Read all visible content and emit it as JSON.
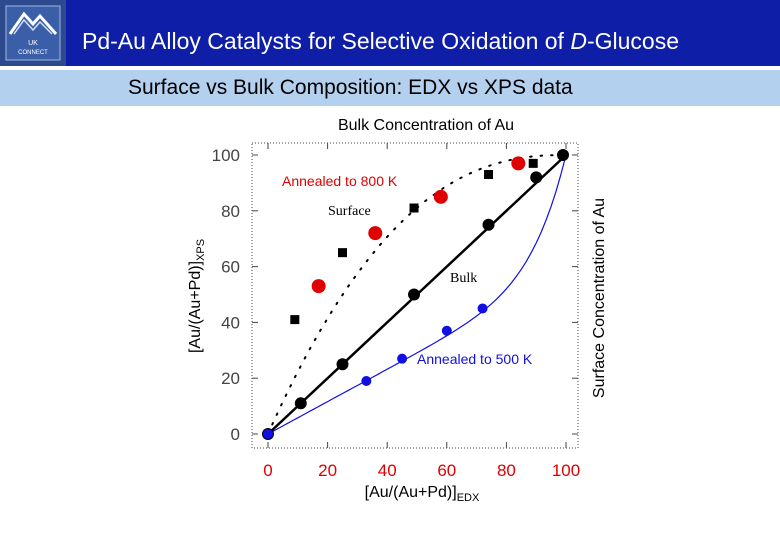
{
  "header": {
    "title_pre": "Pd-Au Alloy Catalysts for Selective Oxidation of ",
    "title_italic": "D",
    "title_post": "-Glucose",
    "logo_text_line1": "UK",
    "logo_text_line2": "CONNECT",
    "colors": {
      "header_bg": "#0f1ea6",
      "subbar_bg": "#b3d0ef"
    }
  },
  "subtitle": "Surface vs Bulk Composition: EDX vs XPS data",
  "chart_data": {
    "type": "scatter",
    "top_label": "Bulk Concentration of Au",
    "right_label": "Surface Concentration of Au",
    "xlabel": "[Au/(Au+Pd)]",
    "xlabel_sub": "EDX",
    "ylabel": "[Au/(Au+Pd)]",
    "ylabel_sub": "XPS",
    "xlim": [
      0,
      100
    ],
    "ylim": [
      0,
      100
    ],
    "xticks": [
      "0",
      "20",
      "40",
      "60",
      "80",
      "100"
    ],
    "yticks": [
      "0",
      "20",
      "40",
      "60",
      "80",
      "100"
    ],
    "annotations": {
      "annealed_800": "Annealed to 800 K",
      "surface": "Surface",
      "bulk": "Bulk",
      "annealed_500": "Annealed to 500 K"
    },
    "series": [
      {
        "name": "Bulk",
        "marker": "circle",
        "color": "#000000",
        "x": [
          0,
          11,
          25,
          49,
          74,
          90,
          99
        ],
        "y": [
          0,
          11,
          25,
          50,
          75,
          92,
          100
        ]
      },
      {
        "name": "Surface",
        "marker": "square",
        "color": "#000000",
        "x": [
          9,
          25,
          49,
          74,
          89
        ],
        "y": [
          41,
          65,
          81,
          93,
          97
        ]
      },
      {
        "name": "Annealed to 800 K",
        "marker": "circle",
        "color": "#e00000",
        "x": [
          17,
          36,
          58,
          84
        ],
        "y": [
          53,
          72,
          85,
          97
        ]
      },
      {
        "name": "Annealed to 500 K",
        "marker": "circle",
        "color": "#1010e0",
        "x": [
          0,
          33,
          45,
          60,
          72
        ],
        "y": [
          0,
          19,
          27,
          37,
          45
        ]
      }
    ]
  }
}
